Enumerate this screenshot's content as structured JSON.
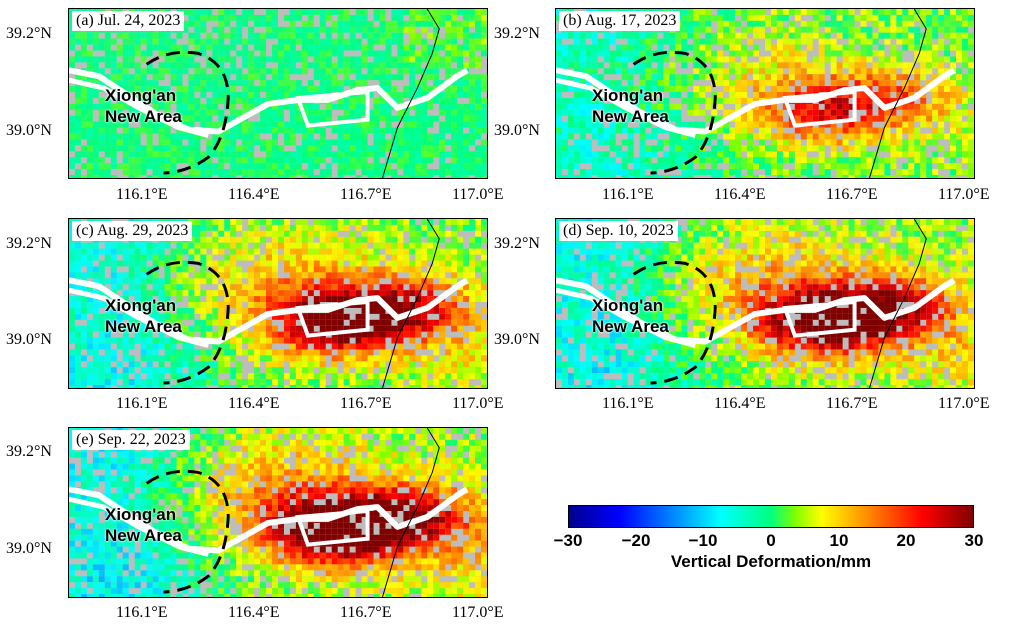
{
  "panels": [
    {
      "title": "(a) Jul. 24, 2023",
      "hot": 0.0
    },
    {
      "title": "(b) Aug. 17, 2023",
      "hot": 0.55
    },
    {
      "title": "(c) Aug. 29, 2023",
      "hot": 0.85
    },
    {
      "title": "(d) Sep. 10, 2023",
      "hot": 0.9
    },
    {
      "title": "(e) Sep. 22, 2023",
      "hot": 1.0
    }
  ],
  "y_ticks": [
    "39.2°N",
    "39.0°N"
  ],
  "x_ticks": [
    "116.1°E",
    "116.4°E",
    "116.7°E",
    "117.0°E"
  ],
  "area_label_line1": "Xiong'an",
  "area_label_line2": "New Area",
  "colorbar": {
    "ticks": [
      "−30",
      "−20",
      "−10",
      "0",
      "10",
      "20",
      "30"
    ],
    "title": "Vertical Deformation/mm",
    "range": [
      -30,
      30
    ]
  }
}
